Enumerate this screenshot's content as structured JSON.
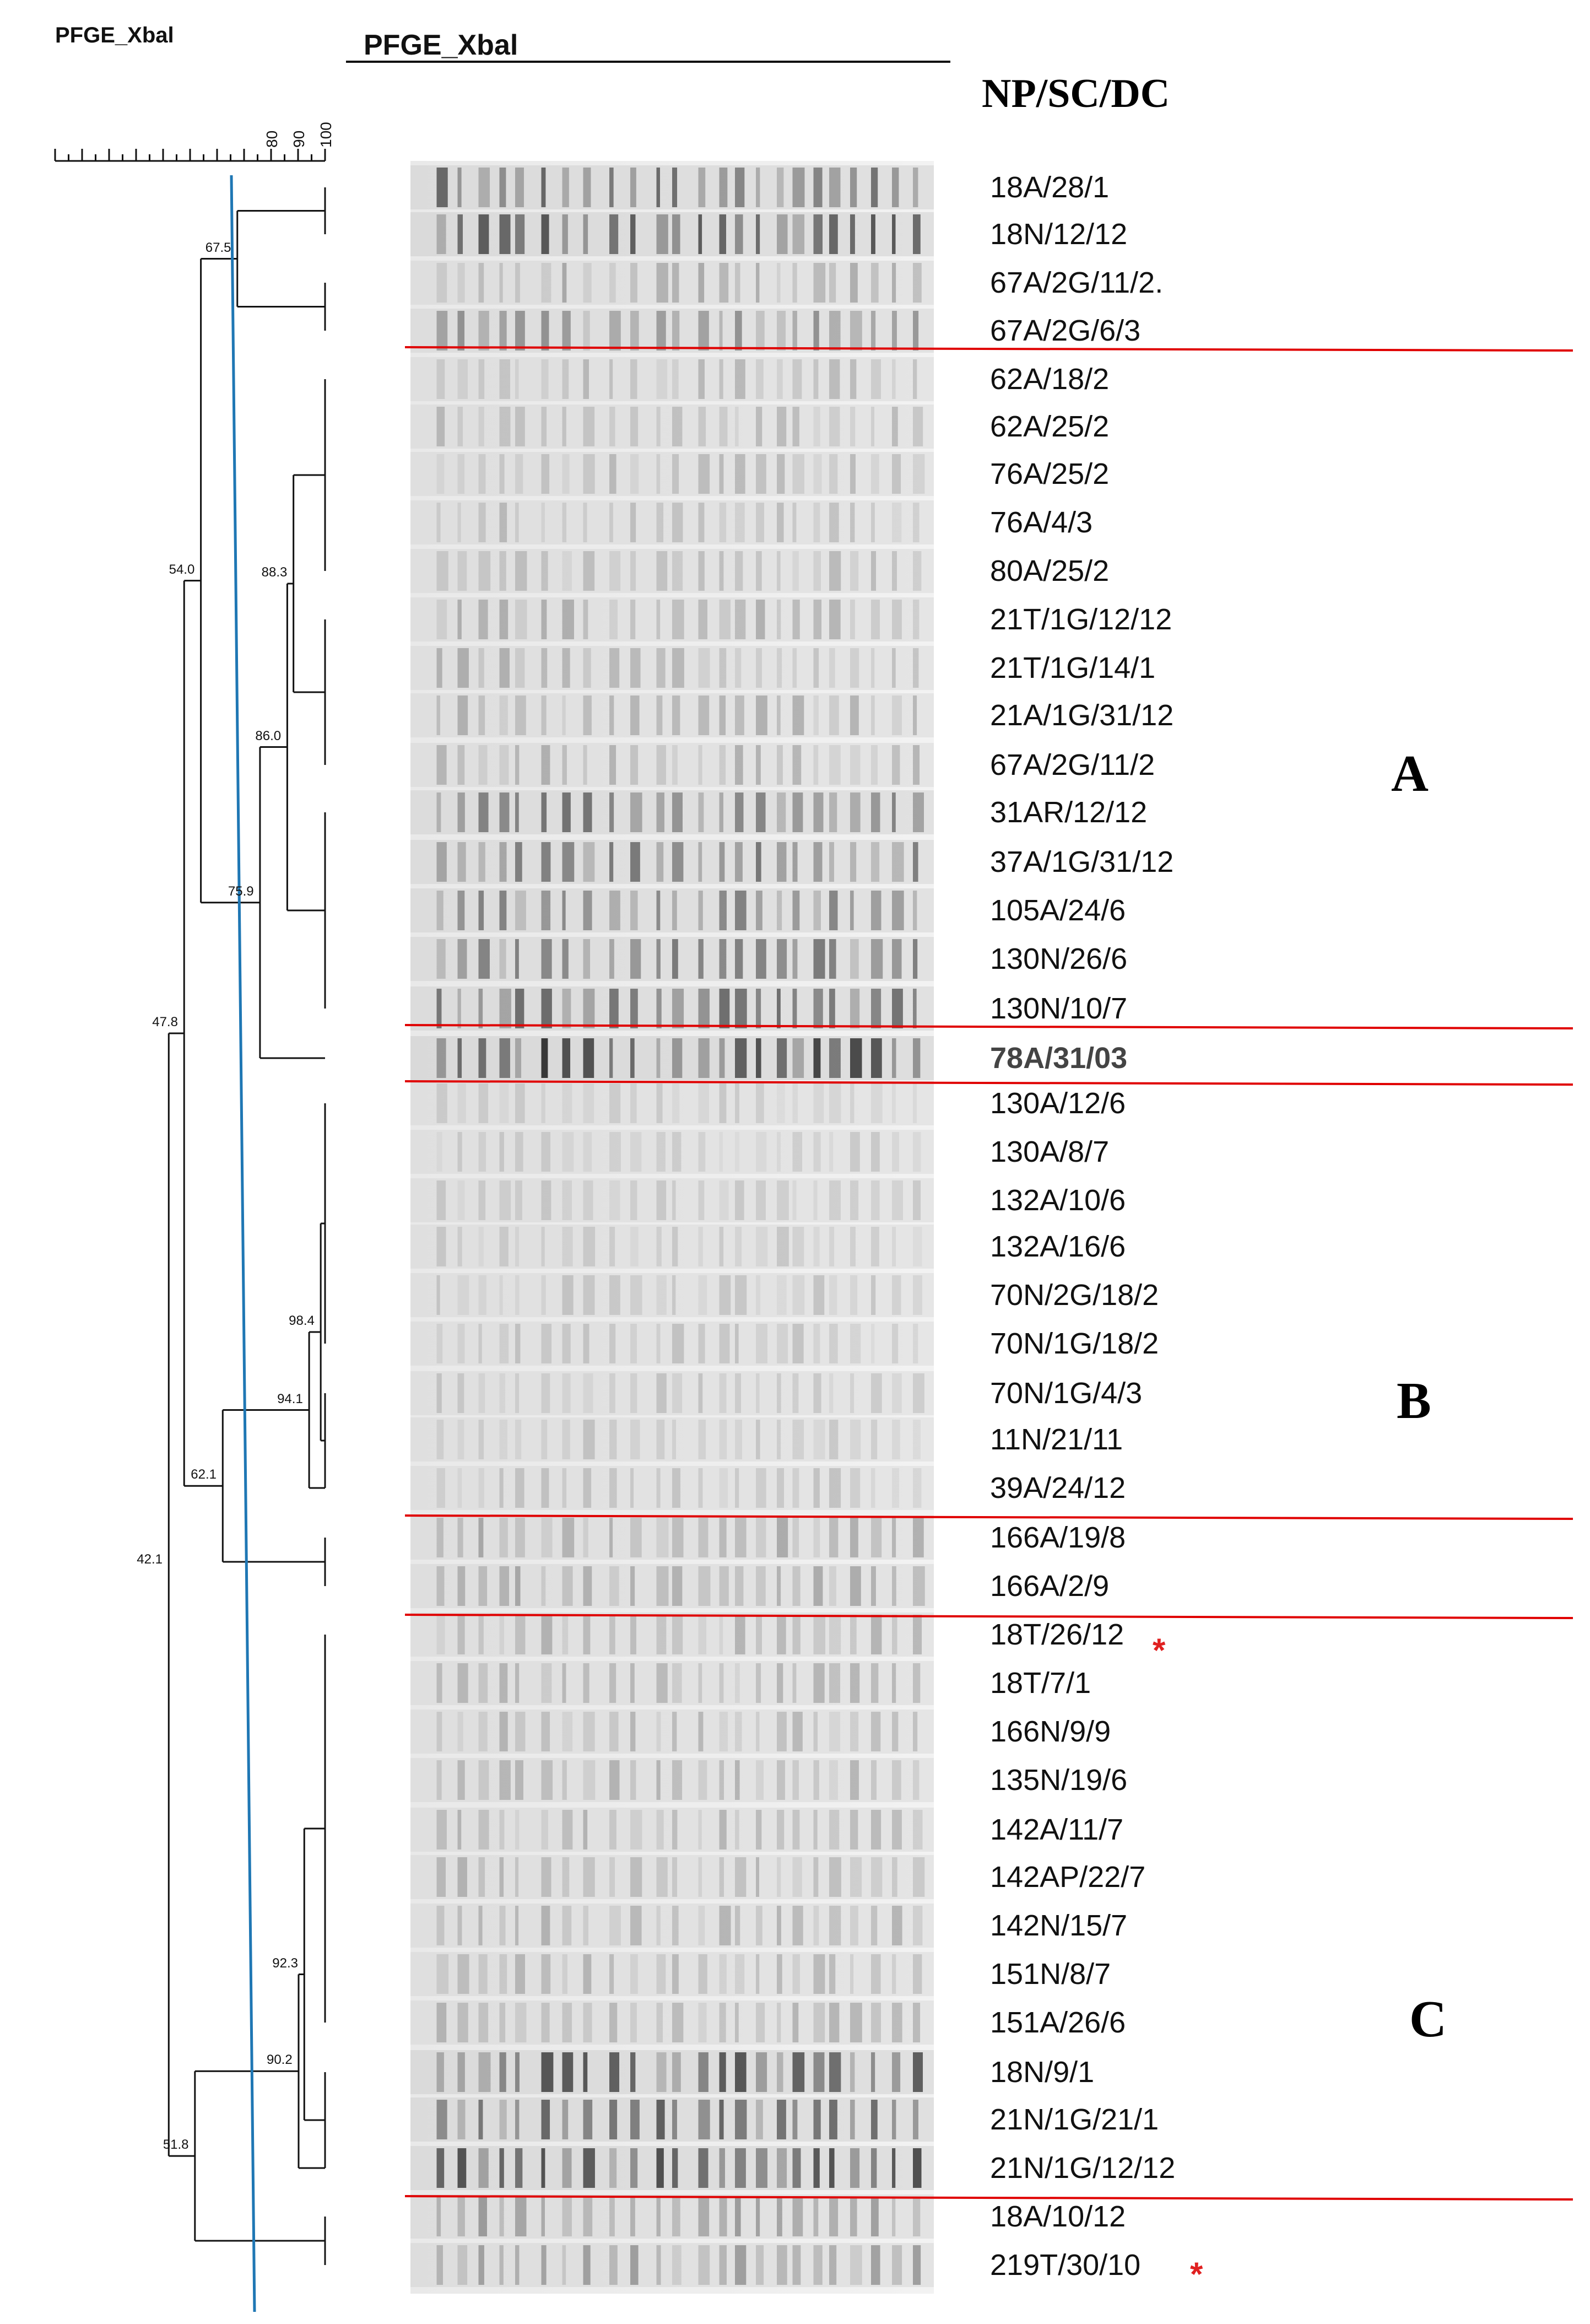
{
  "titles": {
    "dendrogram": "PFGE_Xbal",
    "gel": "PFGE_Xbal",
    "column_header": "NP/SC/DC"
  },
  "scale": {
    "tick_labels": [
      "80",
      "90",
      "100"
    ],
    "range": [
      0,
      100
    ],
    "cutoff_line_color": "#1f77b4"
  },
  "node_labels": [
    "67.5",
    "54.0",
    "88.3",
    "86.0",
    "75.9",
    "47.8",
    "98.4",
    "94.1",
    "62.1",
    "42.1",
    "92.3",
    "90.2",
    "51.8"
  ],
  "samples": [
    "18A/28/1",
    "18N/12/12",
    "67A/2G/11/2.",
    "67A/2G/6/3",
    "62A/18/2",
    "62A/25/2",
    "76A/25/2",
    "76A/4/3",
    "80A/25/2",
    "21T/1G/12/12",
    "21T/1G/14/1",
    "21A/1G/31/12",
    "67A/2G/11/2",
    "31AR/12/12",
    "37A/1G/31/12",
    "105A/24/6",
    "130N/26/6",
    "130N/10/7",
    "78A/31/03",
    "130A/12/6",
    "130A/8/7",
    "132A/10/6",
    "132A/16/6",
    "70N/2G/18/2",
    "70N/1G/18/2",
    "70N/1G/4/3",
    "11N/21/11",
    "39A/24/12",
    "166A/19/8",
    "166A/2/9",
    "18T/26/12",
    "18T/7/1",
    "166N/9/9",
    "135N/19/6",
    "142A/11/7",
    "142AP/22/7",
    "142N/15/7",
    "151N/8/7",
    "151A/26/6",
    "18N/9/1",
    "21N/1G/21/1",
    "21N/1G/12/12",
    "18A/10/12",
    "219T/30/10"
  ],
  "clusters": [
    {
      "label": "A"
    },
    {
      "label": "B"
    },
    {
      "label": "C"
    }
  ],
  "marker": "*",
  "colors": {
    "separator": "#e00000",
    "asterisk": "#e02020",
    "dendrogram": "#111111"
  }
}
